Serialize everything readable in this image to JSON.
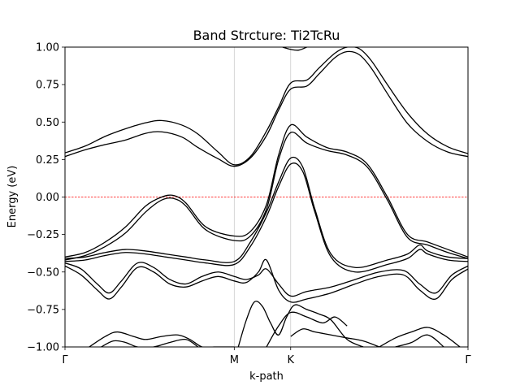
{
  "chart_data": {
    "type": "line",
    "title": "Band Strcture: Ti2TcRu",
    "xlabel": "k-path",
    "ylabel": "Energy (eV)",
    "ylim": [
      -1.0,
      1.0
    ],
    "xlim": [
      0,
      1.0
    ],
    "yticks": [
      -1.0,
      -0.75,
      -0.5,
      -0.25,
      0.0,
      0.25,
      0.5,
      0.75,
      1.0
    ],
    "ytick_labels": [
      "−1.00",
      "−0.75",
      "−0.50",
      "−0.25",
      "0.00",
      "0.25",
      "0.50",
      "0.75",
      "1.00"
    ],
    "high_symmetry_points": [
      {
        "label": "Γ",
        "x": 0.0
      },
      {
        "label": "M",
        "x": 0.42
      },
      {
        "label": "K",
        "x": 0.56
      },
      {
        "label": "Γ",
        "x": 1.0
      }
    ],
    "fermi_level": 0.0,
    "fermi_color": "#ff0000",
    "line_color": "#000000",
    "series": [
      {
        "x": [
          0,
          0.05,
          0.1,
          0.15,
          0.2,
          0.24,
          0.29,
          0.33,
          0.38,
          0.42,
          0.46,
          0.5,
          0.53,
          0.56,
          0.6,
          0.63,
          0.67,
          0.7,
          0.73,
          0.76,
          0.8,
          0.85,
          0.9,
          0.95,
          1.0
        ],
        "values": [
          0.295,
          0.34,
          0.405,
          0.455,
          0.495,
          0.51,
          0.48,
          0.42,
          0.3,
          0.215,
          0.27,
          0.44,
          0.6,
          0.76,
          0.78,
          0.86,
          0.96,
          1.0,
          0.99,
          0.91,
          0.75,
          0.56,
          0.42,
          0.335,
          0.29
        ]
      },
      {
        "x": [
          0,
          0.05,
          0.1,
          0.15,
          0.2,
          0.24,
          0.29,
          0.33,
          0.38,
          0.42,
          0.46,
          0.5,
          0.53,
          0.56,
          0.6,
          0.63,
          0.67,
          0.7,
          0.73,
          0.76,
          0.8,
          0.85,
          0.9,
          0.95,
          1.0
        ],
        "values": [
          0.27,
          0.315,
          0.35,
          0.38,
          0.425,
          0.435,
          0.4,
          0.33,
          0.255,
          0.205,
          0.26,
          0.41,
          0.58,
          0.72,
          0.74,
          0.82,
          0.93,
          0.97,
          0.95,
          0.86,
          0.69,
          0.49,
          0.37,
          0.3,
          0.27
        ]
      },
      {
        "x": [
          0,
          0.05,
          0.1,
          0.15,
          0.2,
          0.24,
          0.27,
          0.3,
          0.35,
          0.42,
          0.46,
          0.5,
          0.53,
          0.56,
          0.6,
          0.65,
          0.7,
          0.75,
          0.8,
          0.85,
          0.9,
          0.95,
          1.0
        ],
        "values": [
          -0.4,
          -0.37,
          -0.3,
          -0.2,
          -0.06,
          0.0,
          0.01,
          -0.04,
          -0.2,
          -0.26,
          -0.23,
          -0.05,
          0.28,
          0.48,
          0.4,
          0.33,
          0.3,
          0.22,
          0.0,
          -0.25,
          -0.3,
          -0.35,
          -0.4
        ]
      },
      {
        "x": [
          0,
          0.05,
          0.1,
          0.15,
          0.2,
          0.24,
          0.27,
          0.3,
          0.35,
          0.42,
          0.46,
          0.5,
          0.53,
          0.56,
          0.6,
          0.65,
          0.7,
          0.75,
          0.8,
          0.85,
          0.9,
          0.95,
          1.0
        ],
        "values": [
          -0.42,
          -0.39,
          -0.33,
          -0.24,
          -0.1,
          -0.02,
          -0.01,
          -0.06,
          -0.22,
          -0.29,
          -0.26,
          -0.08,
          0.25,
          0.43,
          0.36,
          0.31,
          0.28,
          0.2,
          -0.02,
          -0.27,
          -0.32,
          -0.37,
          -0.41
        ]
      },
      {
        "x": [
          0,
          0.05,
          0.1,
          0.15,
          0.2,
          0.25,
          0.3,
          0.35,
          0.42,
          0.46,
          0.5,
          0.53,
          0.56,
          0.59,
          0.62,
          0.66,
          0.72,
          0.8,
          0.85,
          0.88,
          0.9,
          0.95,
          1.0
        ],
        "values": [
          -0.41,
          -0.4,
          -0.37,
          -0.35,
          -0.36,
          -0.38,
          -0.4,
          -0.42,
          -0.43,
          -0.3,
          -0.1,
          0.1,
          0.26,
          0.2,
          -0.08,
          -0.38,
          -0.47,
          -0.42,
          -0.38,
          -0.32,
          -0.36,
          -0.4,
          -0.41
        ]
      },
      {
        "x": [
          0,
          0.05,
          0.1,
          0.15,
          0.2,
          0.25,
          0.3,
          0.35,
          0.42,
          0.46,
          0.5,
          0.53,
          0.56,
          0.59,
          0.62,
          0.66,
          0.72,
          0.8,
          0.85,
          0.88,
          0.9,
          0.95,
          1.0
        ],
        "values": [
          -0.43,
          -0.42,
          -0.39,
          -0.37,
          -0.38,
          -0.4,
          -0.42,
          -0.44,
          -0.45,
          -0.33,
          -0.13,
          0.07,
          0.22,
          0.17,
          -0.1,
          -0.4,
          -0.5,
          -0.45,
          -0.41,
          -0.35,
          -0.38,
          -0.42,
          -0.43
        ]
      },
      {
        "x": [
          0,
          0.04,
          0.08,
          0.11,
          0.14,
          0.18,
          0.22,
          0.26,
          0.3,
          0.34,
          0.38,
          0.42,
          0.45,
          0.48,
          0.5,
          0.53,
          0.56,
          0.6,
          0.66,
          0.72,
          0.78,
          0.84,
          0.88,
          0.92,
          0.96,
          1.0
        ],
        "values": [
          -0.44,
          -0.48,
          -0.58,
          -0.64,
          -0.56,
          -0.44,
          -0.47,
          -0.55,
          -0.58,
          -0.53,
          -0.5,
          -0.53,
          -0.55,
          -0.52,
          -0.48,
          -0.58,
          -0.66,
          -0.63,
          -0.6,
          -0.55,
          -0.5,
          -0.49,
          -0.58,
          -0.64,
          -0.52,
          -0.46
        ]
      },
      {
        "x": [
          0,
          0.04,
          0.08,
          0.11,
          0.14,
          0.18,
          0.22,
          0.26,
          0.3,
          0.34,
          0.38,
          0.42,
          0.45,
          0.48,
          0.5,
          0.53,
          0.56,
          0.6,
          0.66,
          0.72,
          0.78,
          0.84,
          0.88,
          0.92,
          0.96,
          1.0
        ],
        "values": [
          -0.46,
          -0.52,
          -0.62,
          -0.68,
          -0.6,
          -0.47,
          -0.5,
          -0.58,
          -0.6,
          -0.56,
          -0.53,
          -0.56,
          -0.57,
          -0.5,
          -0.42,
          -0.62,
          -0.7,
          -0.68,
          -0.64,
          -0.58,
          -0.53,
          -0.52,
          -0.62,
          -0.68,
          -0.55,
          -0.48
        ]
      },
      {
        "x": [
          0.06,
          0.1,
          0.13,
          0.17,
          0.2,
          0.24,
          0.28,
          0.31,
          0.34,
          0.37,
          0.4,
          0.42
        ],
        "values": [
          -1.0,
          -0.93,
          -0.9,
          -0.93,
          -0.95,
          -0.93,
          -0.92,
          -0.95,
          -1.0,
          -1.0,
          -1.0,
          -1.0
        ]
      },
      {
        "x": [
          0.09,
          0.12,
          0.15,
          0.18,
          0.22,
          0.26,
          0.3,
          0.33
        ],
        "values": [
          -1.0,
          -0.96,
          -0.97,
          -1.0,
          -1.0,
          -0.97,
          -0.95,
          -1.0
        ]
      },
      {
        "x": [
          0.43,
          0.45,
          0.47,
          0.49,
          0.51,
          0.53,
          0.55,
          0.57,
          0.6,
          0.63,
          0.66,
          0.7,
          0.74
        ],
        "values": [
          -1.0,
          -0.82,
          -0.7,
          -0.73,
          -0.84,
          -0.92,
          -0.8,
          -0.72,
          -0.75,
          -0.78,
          -0.82,
          -0.95,
          -1.0
        ]
      },
      {
        "x": [
          0.5,
          0.53,
          0.56,
          0.6,
          0.64,
          0.67,
          0.7
        ],
        "values": [
          -1.0,
          -0.86,
          -0.77,
          -0.8,
          -0.84,
          -0.8,
          -0.86
        ]
      },
      {
        "x": [
          0.56,
          0.59,
          0.62,
          0.66,
          0.7,
          0.74,
          0.78
        ],
        "values": [
          -0.93,
          -0.88,
          -0.9,
          -0.92,
          -0.94,
          -0.96,
          -1.0
        ]
      },
      {
        "x": [
          0.78,
          0.82,
          0.86,
          0.9,
          0.94,
          0.98
        ],
        "values": [
          -1.0,
          -0.94,
          -0.9,
          -0.87,
          -0.92,
          -1.0
        ]
      },
      {
        "x": [
          0.82,
          0.86,
          0.9,
          0.94
        ],
        "values": [
          -1.0,
          -0.97,
          -0.92,
          -1.0
        ]
      },
      {
        "x": [
          0.54,
          0.56,
          0.58,
          0.6
        ],
        "values": [
          1.0,
          0.985,
          0.98,
          1.0
        ]
      }
    ]
  }
}
